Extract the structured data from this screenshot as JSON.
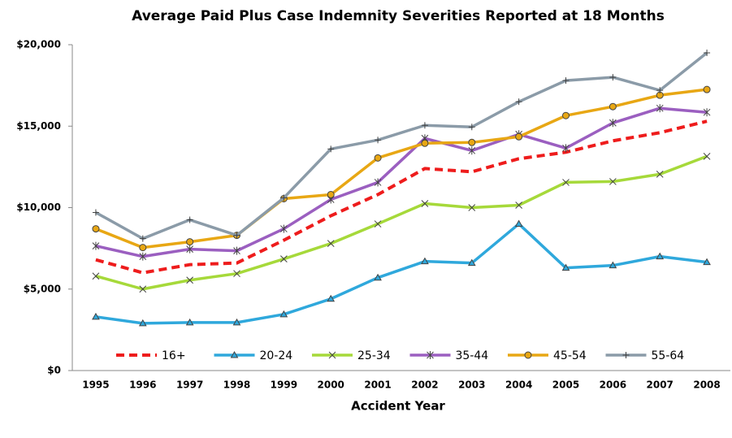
{
  "chart_data": {
    "type": "line",
    "title": "Average Paid Plus Case Indemnity Severities Reported at 18 Months",
    "x_label": "Accident Year",
    "categories": [
      "1995",
      "1996",
      "1997",
      "1998",
      "1999",
      "2000",
      "2001",
      "2002",
      "2003",
      "2004",
      "2005",
      "2006",
      "2007",
      "2008"
    ],
    "ylim": [
      0,
      20000
    ],
    "yticks": [
      {
        "value": 0,
        "label": "$0"
      },
      {
        "value": 5000,
        "label": "$5,000"
      },
      {
        "value": 10000,
        "label": "$10,000"
      },
      {
        "value": 15000,
        "label": "$15,000"
      },
      {
        "value": 20000,
        "label": "$20,000"
      }
    ],
    "grid": false,
    "legend": "bottom",
    "series": [
      {
        "name": "16+",
        "color": "#ee1c1c",
        "style": "dashed",
        "marker": "none",
        "values": [
          6800,
          6000,
          6500,
          6600,
          8000,
          9500,
          10800,
          12400,
          12200,
          13000,
          13400,
          14100,
          14600,
          15300
        ]
      },
      {
        "name": "20-24",
        "color": "#2fa8dc",
        "style": "solid",
        "marker": "triangle",
        "values": [
          3300,
          2900,
          2950,
          2950,
          3450,
          4400,
          5700,
          6700,
          6600,
          9000,
          6300,
          6450,
          7000,
          6650
        ]
      },
      {
        "name": "25-34",
        "color": "#a6d93a",
        "style": "solid",
        "marker": "x",
        "values": [
          5800,
          5000,
          5550,
          5950,
          6850,
          7800,
          9000,
          10250,
          10000,
          10150,
          11550,
          11600,
          12050,
          13150
        ]
      },
      {
        "name": "35-44",
        "color": "#9b5fc0",
        "style": "solid",
        "marker": "star",
        "values": [
          7650,
          7000,
          7450,
          7350,
          8700,
          10500,
          11550,
          14250,
          13500,
          14500,
          13650,
          15200,
          16100,
          15850
        ]
      },
      {
        "name": "45-54",
        "color": "#e8a714",
        "style": "solid",
        "marker": "circle",
        "values": [
          8700,
          7550,
          7900,
          8300,
          10550,
          10800,
          13050,
          13950,
          14000,
          14350,
          15650,
          16200,
          16900,
          17250
        ]
      },
      {
        "name": "55-64",
        "color": "#8b9ba8",
        "style": "solid",
        "marker": "plus",
        "values": [
          9700,
          8100,
          9250,
          8300,
          10600,
          13600,
          14150,
          15050,
          14950,
          16500,
          17800,
          18000,
          17200,
          19500
        ]
      }
    ]
  }
}
